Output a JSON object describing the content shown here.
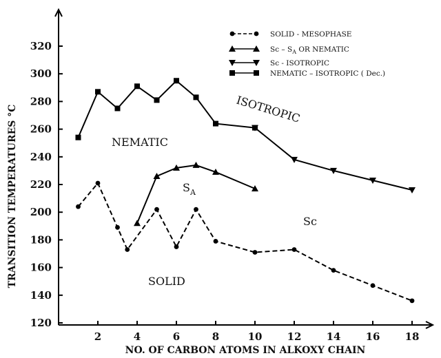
{
  "chart_data": {
    "type": "line",
    "xlabel": "NO. OF CARBON ATOMS IN ALKOXY CHAIN",
    "ylabel": "TRANSITION TEMPERATURES °C",
    "xlim": [
      0,
      20
    ],
    "ylim": [
      120,
      340
    ],
    "x_ticks": [
      2,
      4,
      6,
      8,
      10,
      12,
      14,
      16,
      18
    ],
    "y_ticks": [
      120,
      140,
      160,
      180,
      200,
      220,
      240,
      260,
      280,
      300,
      320
    ],
    "grid": false,
    "legend_position": "top-right",
    "series": [
      {
        "name": "SOLID - MESOPHASE",
        "marker": "circle",
        "linestyle": "dashed",
        "x": [
          1,
          2,
          3,
          3.5,
          5,
          6,
          7,
          8,
          10,
          12,
          14,
          16,
          18
        ],
        "y": [
          204,
          221,
          189,
          173,
          202,
          175,
          202,
          179,
          171,
          173,
          158,
          147,
          136
        ]
      },
      {
        "name_parts": [
          "Sc – S",
          "A",
          " OR NEMATIC"
        ],
        "marker": "triangle-up",
        "linestyle": "solid",
        "x": [
          4,
          5,
          6,
          7,
          8,
          10
        ],
        "y": [
          192,
          226,
          232,
          234,
          229,
          217
        ]
      },
      {
        "name": "Sc - ISOTROPIC",
        "marker": "triangle-down",
        "linestyle": "solid",
        "x": [
          10,
          12,
          14,
          16,
          18
        ],
        "y": [
          261,
          238,
          230,
          223,
          216
        ]
      },
      {
        "name": "NEMATIC – ISOTROPIC ( Dec.)",
        "marker": "square",
        "linestyle": "solid",
        "x": [
          1,
          2,
          3,
          4,
          5,
          6,
          7,
          8,
          10
        ],
        "y": [
          254,
          287,
          275,
          291,
          281,
          295,
          283,
          264,
          261
        ]
      }
    ],
    "annotations": {
      "isotropic": "ISOTROPIC",
      "nematic": "NEMATIC",
      "smectic_a_main": "S",
      "smectic_a_sub": "A",
      "smectic_c": "Sc",
      "solid": "SOLID"
    }
  }
}
